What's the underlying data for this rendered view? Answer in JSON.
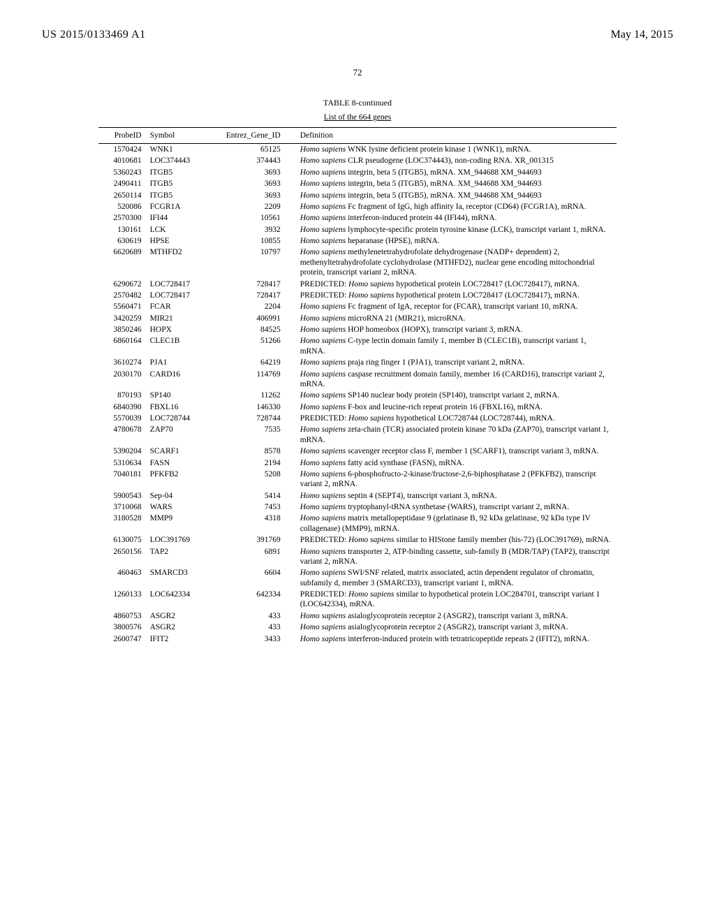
{
  "header": {
    "publication_no": "US 2015/0133469 A1",
    "date": "May 14, 2015",
    "page_no": "72"
  },
  "table": {
    "caption": "TABLE 8-continued",
    "subcaption": "List of the 664 genes",
    "columns": {
      "probe": "ProbeID",
      "symbol": "Symbol",
      "entrez": "Entrez_Gene_ID",
      "def": "Definition"
    },
    "rows": [
      {
        "p": "1570424",
        "s": "WNK1",
        "e": "65125",
        "d": "<i>Homo sapiens</i> WNK lysine deficient protein kinase 1 (WNK1), mRNA."
      },
      {
        "p": "4010681",
        "s": "LOC374443",
        "e": "374443",
        "d": "<i>Homo sapiens</i> CLR pseudogene (LOC374443), non-coding RNA. XR_001315"
      },
      {
        "p": "5360243",
        "s": "ITGB5",
        "e": "3693",
        "d": "<i>Homo sapiens</i> integrin, beta 5 (ITGB5), mRNA. XM_944688 XM_944693"
      },
      {
        "p": "2490411",
        "s": "ITGB5",
        "e": "3693",
        "d": "<i>Homo sapiens</i> integrin, beta 5 (ITGB5), mRNA. XM_944688 XM_944693"
      },
      {
        "p": "2650114",
        "s": "ITGB5",
        "e": "3693",
        "d": "<i>Homo sapiens</i> integrin, beta 5 (ITGB5), mRNA. XM_944688 XM_944693"
      },
      {
        "p": "520086",
        "s": "FCGR1A",
        "e": "2209",
        "d": "<i>Homo sapiens</i> Fc fragment of IgG, high affinity Ia, receptor (CD64) (FCGR1A), mRNA."
      },
      {
        "p": "2570300",
        "s": "IFI44",
        "e": "10561",
        "d": "<i>Homo sapiens</i> interferon-induced protein 44 (IFI44), mRNA."
      },
      {
        "p": "130161",
        "s": "LCK",
        "e": "3932",
        "d": "<i>Homo sapiens</i> lymphocyte-specific protein tyrosine kinase (LCK), transcript variant 1, mRNA."
      },
      {
        "p": "630619",
        "s": "HPSE",
        "e": "10855",
        "d": "<i>Homo sapiens</i> heparanase (HPSE), mRNA."
      },
      {
        "p": "6620689",
        "s": "MTHFD2",
        "e": "10797",
        "d": "<i>Homo sapiens</i> methylenetetrahydrofolate dehydrogenase (NADP+ dependent) 2, methenyltetrahydrofolate cyclohydrolase (MTHFD2), nuclear gene encoding mitochondrial protein, transcript variant 2, mRNA."
      },
      {
        "p": "6290672",
        "s": "LOC728417",
        "e": "728417",
        "d": "PREDICTED: <i>Homo sapiens</i> hypothetical protein LOC728417 (LOC728417), mRNA."
      },
      {
        "p": "2570482",
        "s": "LOC728417",
        "e": "728417",
        "d": "PREDICTED: <i>Homo sapiens</i> hypothetical protein LOC728417 (LOC728417), mRNA."
      },
      {
        "p": "5560471",
        "s": "FCAR",
        "e": "2204",
        "d": "<i>Homo sapiens</i> Fc fragment of IgA, receptor for (FCAR), transcript variant 10, mRNA."
      },
      {
        "p": "3420259",
        "s": "MIR21",
        "e": "406991",
        "d": "<i>Homo sapiens</i> microRNA 21 (MIR21), microRNA."
      },
      {
        "p": "3850246",
        "s": "HOPX",
        "e": "84525",
        "d": "<i>Homo sapiens</i> HOP homeobox (HOPX), transcript variant 3, mRNA."
      },
      {
        "p": "6860164",
        "s": "CLEC1B",
        "e": "51266",
        "d": "<i>Homo sapiens</i> C-type lectin domain family 1, member B (CLEC1B), transcript variant 1, mRNA."
      },
      {
        "p": "3610274",
        "s": "PJA1",
        "e": "64219",
        "d": "<i>Homo sapiens</i> praja ring finger 1 (PJA1), transcript variant 2, mRNA."
      },
      {
        "p": "2030170",
        "s": "CARD16",
        "e": "114769",
        "d": "<i>Homo sapiens</i> caspase recruitment domain family, member 16 (CARD16), transcript variant 2, mRNA."
      },
      {
        "p": "870193",
        "s": "SP140",
        "e": "11262",
        "d": "<i>Homo sapiens</i> SP140 nuclear body protein (SP140), transcript variant 2, mRNA."
      },
      {
        "p": "6840390",
        "s": "FBXL16",
        "e": "146330",
        "d": "<i>Homo sapiens</i> F-box and leucine-rich repeat protein 16 (FBXL16), mRNA."
      },
      {
        "p": "5570039",
        "s": "LOC728744",
        "e": "728744",
        "d": "PREDICTED: <i>Homo sapiens</i> hypothetical LOC728744 (LOC728744), mRNA."
      },
      {
        "p": "4780678",
        "s": "ZAP70",
        "e": "7535",
        "d": "<i>Homo sapiens</i> zeta-chain (TCR) associated protein kinase 70 kDa (ZAP70), transcript variant 1, mRNA."
      },
      {
        "p": "5390204",
        "s": "SCARF1",
        "e": "8578",
        "d": "<i>Homo sapiens</i> scavenger receptor class F, member 1 (SCARF1), transcript variant 3, mRNA."
      },
      {
        "p": "5310634",
        "s": "FASN",
        "e": "2194",
        "d": "<i>Homo sapiens</i> fatty acid synthase (FASN), mRNA."
      },
      {
        "p": "7040181",
        "s": "PFKFB2",
        "e": "5208",
        "d": "<i>Homo sapiens</i> 6-phosphofructo-2-kinase/fructose-2,6-biphosphatase 2 (PFKFB2), transcript variant 2, mRNA."
      },
      {
        "p": "5900543",
        "s": "Sep-04",
        "e": "5414",
        "d": "<i>Homo sapiens</i> septin 4 (SEPT4), transcript variant 3, mRNA."
      },
      {
        "p": "3710068",
        "s": "WARS",
        "e": "7453",
        "d": "<i>Homo sapiens</i> tryptophanyl-tRNA synthetase (WARS), transcript variant 2, mRNA."
      },
      {
        "p": "3180528",
        "s": "MMP9",
        "e": "4318",
        "d": "<i>Homo sapiens</i> matrix metallopeptidase 9 (gelatinase B, 92 kDa gelatinase, 92 kDa type IV collagenase) (MMP9), mRNA."
      },
      {
        "p": "6130075",
        "s": "LOC391769",
        "e": "391769",
        "d": "PREDICTED: <i>Homo sapiens</i> similar to HIStone family member (his-72) (LOC391769), mRNA."
      },
      {
        "p": "2650156",
        "s": "TAP2",
        "e": "6891",
        "d": "<i>Homo sapiens</i> transporter 2, ATP-binding cassette, sub-family B (MDR/TAP) (TAP2), transcript variant 2, mRNA."
      },
      {
        "p": "460463",
        "s": "SMARCD3",
        "e": "6604",
        "d": "<i>Homo sapiens</i> SWI/SNF related, matrix associated, actin dependent regulator of chromatin, subfamily d, member 3 (SMARCD3), transcript variant 1, mRNA."
      },
      {
        "p": "1260133",
        "s": "LOC642334",
        "e": "642334",
        "d": "PREDICTED: <i>Homo sapiens</i> similar to hypothetical protein LOC284701, transcript variant 1 (LOC642334), mRNA."
      },
      {
        "p": "4860753",
        "s": "ASGR2",
        "e": "433",
        "d": "<i>Homo sapiens</i> asialoglycoprotein receptor 2 (ASGR2), transcript variant 3, mRNA."
      },
      {
        "p": "3800576",
        "s": "ASGR2",
        "e": "433",
        "d": "<i>Homo sapiens</i> asialoglycoprotein receptor 2 (ASGR2), transcript variant 3, mRNA."
      },
      {
        "p": "2600747",
        "s": "IFIT2",
        "e": "3433",
        "d": "<i>Homo sapiens</i> interferon-induced protein with tetratricopeptide repeats 2 (IFIT2), mRNA."
      }
    ]
  }
}
